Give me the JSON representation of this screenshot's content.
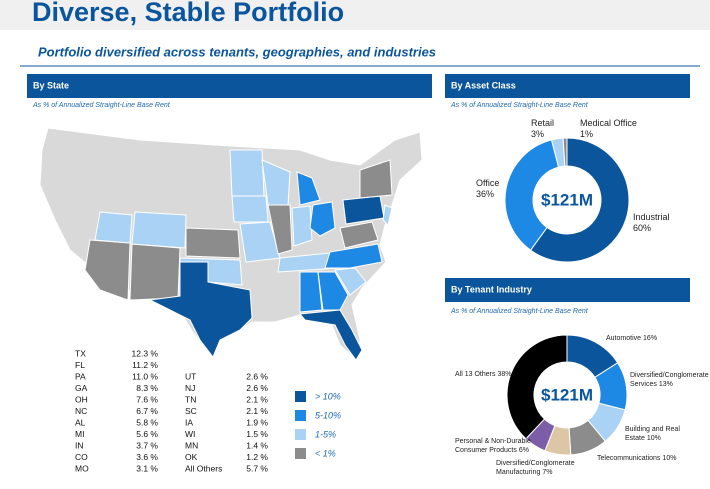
{
  "header": {
    "title": "Diverse, Stable Portfolio",
    "subtitle": "Portfolio diversified across tenants, geographies, and industries"
  },
  "by_state": {
    "title": "By State",
    "note": "As % of Annualized Straight-Line Base Rent",
    "table": {
      "columns": [
        [
          [
            "TX",
            "12.3 %"
          ],
          [
            "FL",
            "11.2 %"
          ],
          [
            "PA",
            "11.0 %"
          ],
          [
            "GA",
            "8.3 %"
          ],
          [
            "OH",
            "7.6 %"
          ],
          [
            "NC",
            "6.7 %"
          ],
          [
            "AL",
            "5.8 %"
          ],
          [
            "MI",
            "5.6 %"
          ],
          [
            "IN",
            "3.7 %"
          ],
          [
            "CO",
            "3.6 %"
          ],
          [
            "MO",
            "3.1 %"
          ]
        ],
        [
          [
            "UT",
            "2.6 %"
          ],
          [
            "NJ",
            "2.6 %"
          ],
          [
            "TN",
            "2.1 %"
          ],
          [
            "SC",
            "2.1 %"
          ],
          [
            "IA",
            "1.9 %"
          ],
          [
            "WI",
            "1.5 %"
          ],
          [
            "MN",
            "1.4 %"
          ],
          [
            "OK",
            "1.2 %"
          ],
          [
            "All Others",
            "5.7 %"
          ]
        ]
      ]
    },
    "legend": [
      {
        "label": "> 10%",
        "color": "#0b559c"
      },
      {
        "label": "5-10%",
        "color": "#1e88e5"
      },
      {
        "label": "1-5%",
        "color": "#a9d2f5"
      },
      {
        "label": "< 1%",
        "color": "#8c8c8c"
      }
    ]
  },
  "chart_data": [
    {
      "type": "pie",
      "title": "By Asset Class",
      "note": "As % of Annualized Straight-Line Base Rent",
      "center_label": "$121M",
      "categories": [
        "Industrial",
        "Office",
        "Retail",
        "Medical Office"
      ],
      "values": [
        60,
        36,
        3,
        1
      ],
      "value_labels": [
        "60%",
        "36%",
        "3%",
        "1%"
      ],
      "colors": [
        "#0b559c",
        "#1e88e5",
        "#a9d2f5",
        "#8c8c8c"
      ]
    },
    {
      "type": "pie",
      "title": "By Tenant Industry",
      "note": "As % of Annualized Straight-Line Base Rent",
      "center_label": "$121M",
      "categories": [
        "Automotive",
        "Diversified/Conglomerate Services",
        "Building and Real Estate",
        "Telecommunications",
        "Diversified/Conglomerate Manufacturing",
        "Personal & Non-Durable Consumer Products",
        "All 13 Others"
      ],
      "values": [
        16,
        13,
        10,
        10,
        7,
        6,
        38
      ],
      "value_labels": [
        "16%",
        "13%",
        "10%",
        "10%",
        "7%",
        "6%",
        "38%"
      ],
      "colors": [
        "#0b559c",
        "#1e88e5",
        "#a9d2f5",
        "#8c8c8c",
        "#dcc6a6",
        "#7b5ea7",
        "#000000"
      ]
    }
  ]
}
